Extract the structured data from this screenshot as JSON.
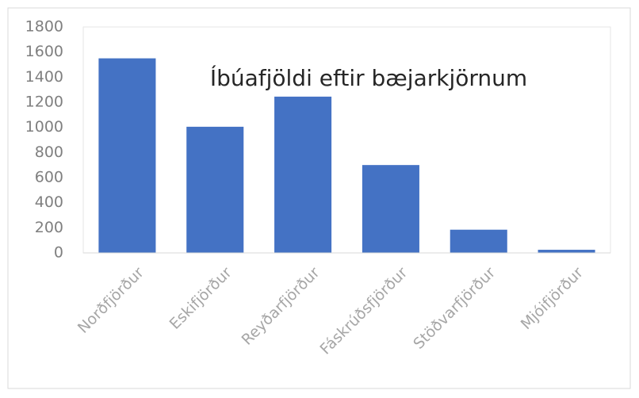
{
  "chart_data": {
    "type": "bar",
    "title": "Íbúafjöldi eftir bæjarkjörnum",
    "categories": [
      "Norðfjörður",
      "Eskifjörður",
      "Reyðarfjörður",
      "Fáskrúðsfjörður",
      "Stöðvarfjörður",
      "Mjóifjörður"
    ],
    "values": [
      1550,
      1005,
      1245,
      700,
      185,
      25
    ],
    "color": "#4472c4",
    "ylim": [
      0,
      1800
    ],
    "yticks": [
      0,
      200,
      400,
      600,
      800,
      1000,
      1200,
      1400,
      1600,
      1800
    ],
    "grid": false
  }
}
